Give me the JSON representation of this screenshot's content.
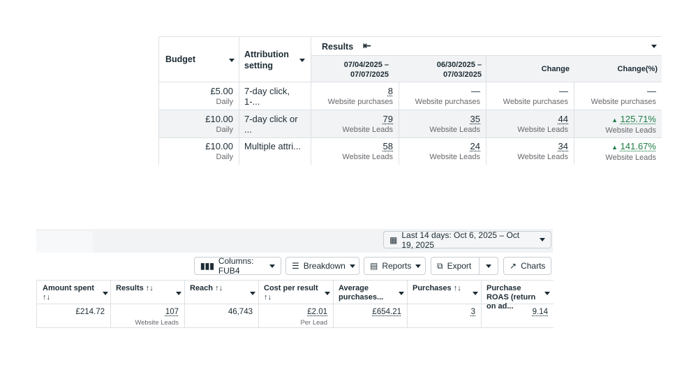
{
  "top_table": {
    "headers": {
      "budget": "Budget",
      "attribution": "Attribution setting",
      "results": "Results",
      "date1": "07/04/2025 – 07/07/2025",
      "date2": "06/30/2025 – 07/03/2025",
      "change": "Change",
      "change_pct": "Change(%)"
    },
    "rows": [
      {
        "budget": "£5.00",
        "budget_sub": "Daily",
        "attribution": "7-day click, 1-...",
        "d1": "8",
        "d1_sub": "Website purchases",
        "d2": "—",
        "d2_sub": "Website purchases",
        "change": "—",
        "change_sub": "Website purchases",
        "pct": "—",
        "pct_sub": "Website purchases"
      },
      {
        "budget": "£10.00",
        "budget_sub": "Daily",
        "attribution": "7-day click or ...",
        "d1": "79",
        "d1_sub": "Website Leads",
        "d2": "35",
        "d2_sub": "Website Leads",
        "change": "44",
        "change_sub": "Website Leads",
        "pct": "125.71%",
        "pct_sub": "Website Leads"
      },
      {
        "budget": "£10.00",
        "budget_sub": "Daily",
        "attribution": "Multiple attri...",
        "d1": "58",
        "d1_sub": "Website Leads",
        "d2": "24",
        "d2_sub": "Website Leads",
        "change": "34",
        "change_sub": "Website Leads",
        "pct": "141.67%",
        "pct_sub": "Website Leads"
      }
    ]
  },
  "date_range": "Last 14 days: Oct 6, 2025 – Oct 19, 2025",
  "toolbar": {
    "columns": "Columns: FUB4",
    "breakdown": "Breakdown",
    "reports": "Reports",
    "export": "Export",
    "charts": "Charts"
  },
  "bottom_table": {
    "headers": [
      "Amount spent ↑↓",
      "Results ↑↓",
      "Reach ↑↓",
      "Cost per result ↑↓",
      "Average purchases...",
      "Purchases ↑↓",
      "Purchase ROAS (return on ad..."
    ],
    "row": {
      "amount": "£214.72",
      "results": "107",
      "results_sub": "Website Leads",
      "reach": "46,743",
      "cpr": "£2.01",
      "cpr_sub": "Per Lead",
      "avg": "£654.21",
      "purchases": "3",
      "roas": "9.14"
    }
  },
  "colors": {
    "accent_green": "#1e7d45",
    "row_highlight": "#f1f3f5"
  }
}
